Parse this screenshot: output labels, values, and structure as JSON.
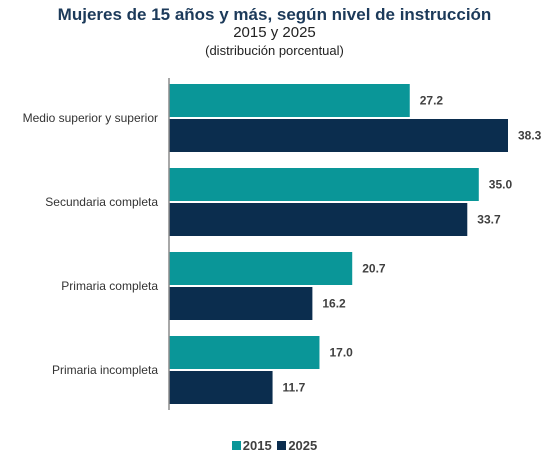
{
  "header": {
    "title": "Mujeres de 15 años y más, según nivel de instrucción",
    "subtitle": "2015 y 2025",
    "note": "(distribución porcentual)"
  },
  "colors": {
    "series_2015": "#0a9698",
    "series_2025": "#0b2d4e",
    "axis": "#8c8c8c"
  },
  "chart_data": {
    "type": "bar",
    "orientation": "horizontal",
    "title": "Mujeres de 15 años y más, según nivel de instrucción",
    "subtitle": "2015 y 2025",
    "ylabel": "(distribución porcentual)",
    "categories": [
      "Medio superior y superior",
      "Secundaria completa",
      "Primaria completa",
      "Primaria incompleta"
    ],
    "series": [
      {
        "name": "2015",
        "values": [
          27.2,
          35.0,
          20.7,
          17.0
        ]
      },
      {
        "name": "2025",
        "values": [
          38.3,
          33.7,
          16.2,
          11.7
        ]
      }
    ],
    "value_labels": [
      [
        "27.2",
        "35.0",
        "20.7",
        "17.0"
      ],
      [
        "38.3",
        "33.7",
        "16.2",
        "11.7"
      ]
    ],
    "xlim": [
      0,
      38.3
    ],
    "grid": false,
    "legend_position": "bottom-center"
  }
}
